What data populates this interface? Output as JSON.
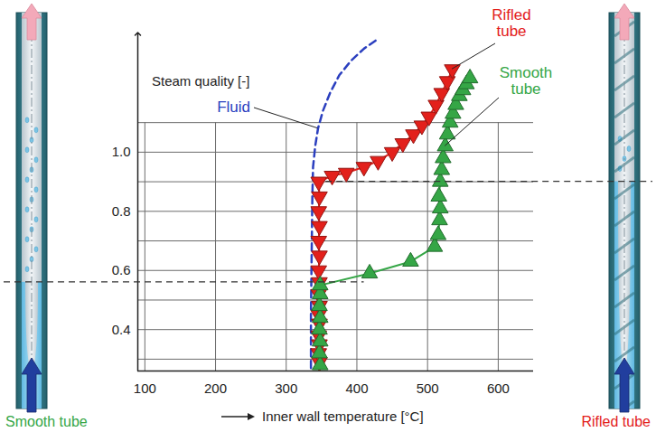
{
  "chart_data": {
    "type": "line",
    "x_label": "Inner wall temperature [°C]",
    "y_label": "Steam quality [-]",
    "xlim": [
      90,
      650
    ],
    "xticks": [
      100,
      200,
      300,
      400,
      500,
      600
    ],
    "ylim": [
      0.26,
      1.4
    ],
    "yticks": [
      0.4,
      0.6,
      0.8,
      {
        "value": 1,
        "label": "1.0"
      }
    ],
    "grid": true,
    "series": [
      {
        "name": "Fluid",
        "color": "#2b3fbf",
        "line_style": "dashed",
        "x": [
          335,
          335,
          336,
          337,
          338,
          341,
          345,
          352,
          362,
          375,
          392,
          410,
          428
        ],
        "values": [
          0.27,
          0.45,
          0.65,
          0.85,
          0.95,
          1.02,
          1.08,
          1.14,
          1.2,
          1.26,
          1.31,
          1.35,
          1.38
        ]
      },
      {
        "name": "Rifled tube",
        "color": "#e3201b",
        "line_style": "solid",
        "marker": "triangle-down",
        "dashed_line_y": 0.9,
        "x": [
          347,
          346,
          347,
          346,
          347,
          346,
          347,
          346,
          347,
          346,
          347,
          346,
          347,
          346,
          347,
          346,
          365,
          385,
          410,
          430,
          450,
          465,
          480,
          492,
          502,
          512,
          520,
          528,
          535
        ],
        "values": [
          0.29,
          0.32,
          0.35,
          0.38,
          0.42,
          0.45,
          0.48,
          0.52,
          0.56,
          0.6,
          0.65,
          0.7,
          0.75,
          0.8,
          0.85,
          0.9,
          0.92,
          0.93,
          0.95,
          0.97,
          1.0,
          1.03,
          1.06,
          1.09,
          1.12,
          1.16,
          1.2,
          1.24,
          1.28
        ]
      },
      {
        "name": "Smooth tube",
        "color": "#35a646",
        "line_style": "solid",
        "marker": "triangle-up",
        "dashed_line_y": 0.56,
        "x": [
          348,
          347,
          348,
          347,
          348,
          347,
          348,
          348,
          418,
          476,
          510,
          515,
          517,
          518,
          516,
          518,
          520,
          522,
          525,
          528,
          532,
          536,
          540,
          545,
          550,
          555,
          560
        ],
        "values": [
          0.28,
          0.32,
          0.36,
          0.4,
          0.44,
          0.48,
          0.52,
          0.55,
          0.59,
          0.63,
          0.68,
          0.72,
          0.77,
          0.81,
          0.85,
          0.9,
          0.94,
          0.98,
          1.02,
          1.06,
          1.1,
          1.13,
          1.16,
          1.19,
          1.21,
          1.23,
          1.25
        ]
      }
    ],
    "tube_drawings": [
      "Smooth tube",
      "Rifled tube"
    ]
  }
}
